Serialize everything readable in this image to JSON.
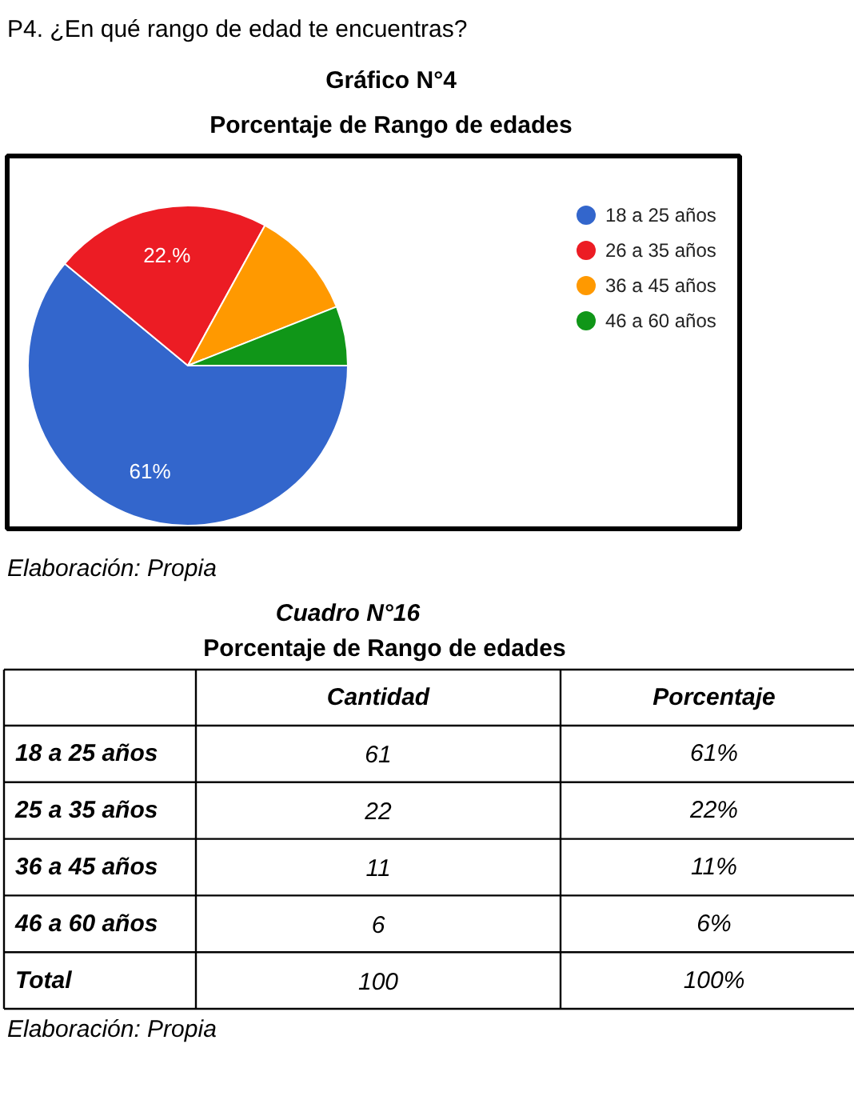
{
  "chart_data": [
    {
      "type": "pie",
      "title": "Gráfico N°4",
      "subtitle": "Porcentaje de Rango de edades",
      "categories": [
        "18 a 25 años",
        "26 a 35 años",
        "36 a 45 años",
        "46 a 60 años"
      ],
      "values": [
        61,
        22,
        11,
        6
      ],
      "colors": [
        "#3366cc",
        "#ec1c24",
        "#ff9900",
        "#109618"
      ],
      "value_labels": [
        "61%",
        "22.%",
        null,
        null
      ],
      "legend": "right",
      "annotations": [
        "P4. ¿En qué rango de edad te encuentras?",
        "Elaboración: Propia"
      ]
    },
    {
      "type": "other",
      "title": "Cuadro N°16",
      "subtitle": "Porcentaje de Rango de edades",
      "annotations": [
        "Cantidad",
        "Porcentaje",
        "18 a 25 años",
        "61",
        "61%",
        "25 a 35 años",
        "22",
        "22%",
        "36 a 45 años",
        "11",
        "11%",
        "46 a 60 años",
        "6",
        "6%",
        "Total",
        "100",
        "100%",
        "Elaboración: Propia"
      ]
    }
  ]
}
